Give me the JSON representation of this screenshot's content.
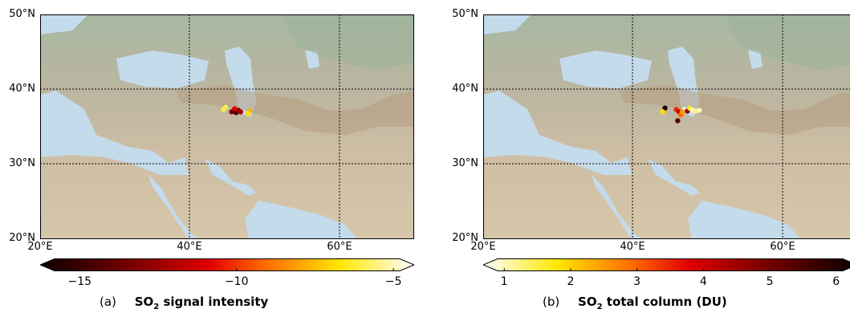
{
  "panels": [
    {
      "id": "a",
      "caption_letter": "(a)",
      "title_prefix": "SO",
      "title_sub": "2",
      "title_suffix": " signal intensity",
      "lat_labels": [
        "50°N",
        "40°N",
        "30°N",
        "20°N"
      ],
      "lon_labels": [
        "20°E",
        "40°E",
        "60°E"
      ],
      "colorbar": {
        "ticks": [
          "−15",
          "−10",
          "−5"
        ],
        "tick_values": [
          -15,
          -10,
          -5
        ],
        "range": [
          -15.8,
          -4.8
        ],
        "colormap": "hot",
        "extend": "both"
      },
      "points": [
        {
          "lon": 44.5,
          "lat": 37.3,
          "value": -6.5
        },
        {
          "lon": 44.8,
          "lat": 37.6,
          "value": -6.2
        },
        {
          "lon": 45.6,
          "lat": 37.0,
          "value": -12.8
        },
        {
          "lon": 45.9,
          "lat": 37.1,
          "value": -13.5
        },
        {
          "lon": 46.2,
          "lat": 36.9,
          "value": -14.6
        },
        {
          "lon": 46.5,
          "lat": 37.2,
          "value": -13.0
        },
        {
          "lon": 46.0,
          "lat": 37.4,
          "value": -11.0
        },
        {
          "lon": 46.8,
          "lat": 37.0,
          "value": -12.0
        },
        {
          "lon": 48.0,
          "lat": 37.1,
          "value": -8.0
        },
        {
          "lon": 47.8,
          "lat": 36.8,
          "value": -7.2
        }
      ]
    },
    {
      "id": "b",
      "caption_letter": "(b)",
      "title_prefix": "SO",
      "title_sub": "2",
      "title_suffix": " total column (DU)",
      "lat_labels": [
        "50°N",
        "40°N",
        "30°N",
        "20°N"
      ],
      "lon_labels": [
        "20°E",
        "40°E",
        "60°E"
      ],
      "colorbar": {
        "ticks": [
          "1",
          "2",
          "3",
          "4",
          "5",
          "6"
        ],
        "tick_values": [
          1,
          2,
          3,
          4,
          5,
          6
        ],
        "range": [
          0.9,
          6.1
        ],
        "colormap": "hot_r",
        "extend": "both"
      },
      "points": [
        {
          "lon": 44.3,
          "lat": 37.5,
          "value": 5.8
        },
        {
          "lon": 44.0,
          "lat": 37.0,
          "value": 2.0
        },
        {
          "lon": 45.8,
          "lat": 37.3,
          "value": 3.5
        },
        {
          "lon": 46.2,
          "lat": 37.0,
          "value": 4.2
        },
        {
          "lon": 46.4,
          "lat": 36.6,
          "value": 3.0
        },
        {
          "lon": 46.0,
          "lat": 35.8,
          "value": 5.2
        },
        {
          "lon": 46.9,
          "lat": 37.3,
          "value": 1.2
        },
        {
          "lon": 47.3,
          "lat": 37.1,
          "value": 4.6
        },
        {
          "lon": 47.6,
          "lat": 37.5,
          "value": 1.8
        },
        {
          "lon": 48.0,
          "lat": 37.2,
          "value": 1.1
        },
        {
          "lon": 48.4,
          "lat": 37.1,
          "value": 1.4
        },
        {
          "lon": 48.9,
          "lat": 37.2,
          "value": 1.2
        },
        {
          "lon": 46.6,
          "lat": 37.0,
          "value": 2.6
        }
      ]
    }
  ],
  "map_extent": {
    "lon": [
      20,
      70
    ],
    "lat": [
      20,
      50
    ]
  },
  "colors": {
    "land": "#c9bca2",
    "land_dark": "#a89276",
    "vegetation": "#9fb29a",
    "sea": "#c7dbe9",
    "sea_deep": "#a9c8e0",
    "grid": "#000000"
  }
}
